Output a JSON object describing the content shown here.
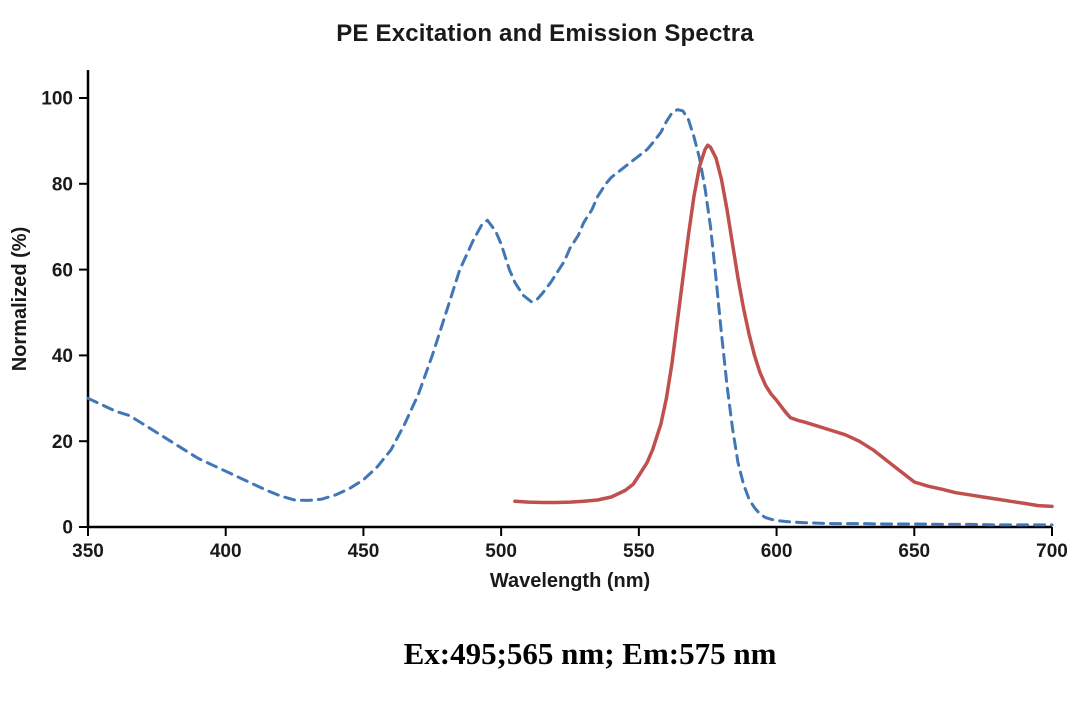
{
  "chart": {
    "title": "PE Excitation and Emission Spectra",
    "x_axis_label": "Wavelength (nm)",
    "y_axis_label": "Normalized (%)",
    "caption": "Ex:495;565 nm; Em:575 nm"
  },
  "chart_data": {
    "type": "line",
    "title": "PE Excitation and Emission Spectra",
    "xlabel": "Wavelength (nm)",
    "ylabel": "Normalized (%)",
    "xlim": [
      350,
      700
    ],
    "ylim": [
      0,
      100
    ],
    "x_ticks": [
      350,
      400,
      450,
      500,
      550,
      600,
      650,
      700
    ],
    "y_ticks": [
      0,
      20,
      40,
      60,
      80,
      100
    ],
    "grid": false,
    "legend_position": "none",
    "annotation": "Ex:495;565 nm; Em:575 nm",
    "axis_color": "#000000",
    "series": [
      {
        "name": "Excitation",
        "style": "dashed",
        "color": "#4177B5",
        "width": 3,
        "points": [
          [
            350,
            30
          ],
          [
            355,
            28.5
          ],
          [
            360,
            27
          ],
          [
            365,
            26
          ],
          [
            370,
            24
          ],
          [
            375,
            22
          ],
          [
            380,
            20
          ],
          [
            385,
            18
          ],
          [
            390,
            16
          ],
          [
            395,
            14.5
          ],
          [
            400,
            13
          ],
          [
            405,
            11.5
          ],
          [
            410,
            10
          ],
          [
            415,
            8.5
          ],
          [
            420,
            7.2
          ],
          [
            425,
            6.3
          ],
          [
            430,
            6.2
          ],
          [
            435,
            6.5
          ],
          [
            440,
            7.5
          ],
          [
            445,
            9
          ],
          [
            450,
            11
          ],
          [
            455,
            14
          ],
          [
            460,
            18
          ],
          [
            465,
            24
          ],
          [
            470,
            31
          ],
          [
            475,
            40
          ],
          [
            480,
            50
          ],
          [
            485,
            60
          ],
          [
            490,
            67
          ],
          [
            493,
            70.5
          ],
          [
            495,
            71.5
          ],
          [
            498,
            69
          ],
          [
            500,
            66
          ],
          [
            503,
            60
          ],
          [
            505,
            57
          ],
          [
            508,
            54
          ],
          [
            511,
            52.5
          ],
          [
            513,
            53
          ],
          [
            515,
            54.5
          ],
          [
            518,
            57
          ],
          [
            520,
            59
          ],
          [
            523,
            62
          ],
          [
            525,
            65
          ],
          [
            528,
            68
          ],
          [
            530,
            71
          ],
          [
            533,
            74
          ],
          [
            535,
            77
          ],
          [
            538,
            80
          ],
          [
            540,
            81.5
          ],
          [
            543,
            83
          ],
          [
            545,
            84
          ],
          [
            548,
            85.5
          ],
          [
            550,
            86.5
          ],
          [
            553,
            88
          ],
          [
            555,
            89.5
          ],
          [
            558,
            92
          ],
          [
            560,
            94.5
          ],
          [
            562,
            96.5
          ],
          [
            564,
            97.3
          ],
          [
            566,
            97
          ],
          [
            568,
            95
          ],
          [
            570,
            91
          ],
          [
            572,
            86
          ],
          [
            574,
            79
          ],
          [
            576,
            70
          ],
          [
            578,
            58
          ],
          [
            580,
            45
          ],
          [
            582,
            33
          ],
          [
            584,
            23
          ],
          [
            586,
            15
          ],
          [
            588,
            10
          ],
          [
            590,
            6.5
          ],
          [
            592,
            4.5
          ],
          [
            594,
            3
          ],
          [
            596,
            2.2
          ],
          [
            598,
            1.8
          ],
          [
            600,
            1.5
          ],
          [
            605,
            1.2
          ],
          [
            610,
            1
          ],
          [
            620,
            0.8
          ],
          [
            630,
            0.8
          ],
          [
            640,
            0.7
          ],
          [
            650,
            0.7
          ],
          [
            660,
            0.6
          ],
          [
            670,
            0.6
          ],
          [
            680,
            0.5
          ],
          [
            690,
            0.5
          ],
          [
            700,
            0.5
          ]
        ]
      },
      {
        "name": "Emission",
        "style": "solid",
        "color": "#C0504D",
        "width": 3.5,
        "points": [
          [
            505,
            6
          ],
          [
            510,
            5.8
          ],
          [
            515,
            5.7
          ],
          [
            520,
            5.7
          ],
          [
            525,
            5.8
          ],
          [
            530,
            6
          ],
          [
            535,
            6.3
          ],
          [
            540,
            7
          ],
          [
            545,
            8.5
          ],
          [
            548,
            10
          ],
          [
            550,
            12
          ],
          [
            553,
            15
          ],
          [
            555,
            18
          ],
          [
            558,
            24
          ],
          [
            560,
            30
          ],
          [
            562,
            38
          ],
          [
            564,
            48
          ],
          [
            566,
            58
          ],
          [
            568,
            68
          ],
          [
            570,
            77
          ],
          [
            572,
            84
          ],
          [
            574,
            88
          ],
          [
            575,
            89
          ],
          [
            576,
            88.5
          ],
          [
            578,
            86
          ],
          [
            580,
            81
          ],
          [
            582,
            74
          ],
          [
            584,
            66
          ],
          [
            586,
            58
          ],
          [
            588,
            51
          ],
          [
            590,
            45
          ],
          [
            592,
            40
          ],
          [
            594,
            36
          ],
          [
            596,
            33
          ],
          [
            598,
            31
          ],
          [
            600,
            29.5
          ],
          [
            603,
            27
          ],
          [
            605,
            25.5
          ],
          [
            608,
            24.8
          ],
          [
            610,
            24.5
          ],
          [
            615,
            23.5
          ],
          [
            620,
            22.5
          ],
          [
            625,
            21.5
          ],
          [
            630,
            20
          ],
          [
            635,
            18
          ],
          [
            640,
            15.5
          ],
          [
            645,
            13
          ],
          [
            650,
            10.5
          ],
          [
            655,
            9.5
          ],
          [
            660,
            8.8
          ],
          [
            665,
            8
          ],
          [
            670,
            7.5
          ],
          [
            675,
            7
          ],
          [
            680,
            6.5
          ],
          [
            685,
            6
          ],
          [
            690,
            5.5
          ],
          [
            695,
            5
          ],
          [
            700,
            4.8
          ]
        ]
      }
    ]
  }
}
